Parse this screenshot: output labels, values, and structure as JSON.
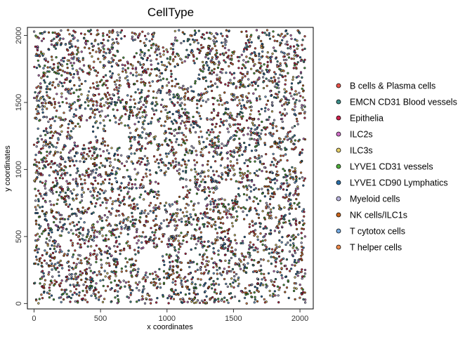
{
  "chart_data": {
    "type": "scatter",
    "title": "CellType",
    "xlabel": "x coordinates",
    "ylabel": "y coordinates",
    "xlim": [
      -50,
      2100
    ],
    "ylim": [
      -40,
      2060
    ],
    "x_ticks": [
      0,
      500,
      1000,
      1500,
      2000
    ],
    "y_ticks": [
      0,
      500,
      1000,
      1500,
      2000
    ],
    "x_tick_labels": [
      "0",
      "500",
      "1000",
      "1500",
      "2000"
    ],
    "y_tick_labels": [
      "0",
      "500",
      "1000",
      "1500",
      "2000"
    ],
    "grid": false,
    "legend_position": "right",
    "series": [
      {
        "name": "B cells & Plasma cells",
        "color": "#e8534a"
      },
      {
        "name": "EMCN CD31 Blood vessels",
        "color": "#3d8f8a"
      },
      {
        "name": "Epithelia",
        "color": "#d0214d"
      },
      {
        "name": "ILC2s",
        "color": "#d070c8"
      },
      {
        "name": "ILC3s",
        "color": "#e6d06a"
      },
      {
        "name": "LYVE1 CD31 vessels",
        "color": "#4fae3c"
      },
      {
        "name": "LYVE1 CD90 Lymphatics",
        "color": "#2b6fa8"
      },
      {
        "name": "Myeloid cells",
        "color": "#b9b3dd"
      },
      {
        "name": "NK cells/ILC1s",
        "color": "#c8641c"
      },
      {
        "name": "T cytotox cells",
        "color": "#74a9e0"
      },
      {
        "name": "T helper cells",
        "color": "#f08a4b"
      }
    ]
  }
}
